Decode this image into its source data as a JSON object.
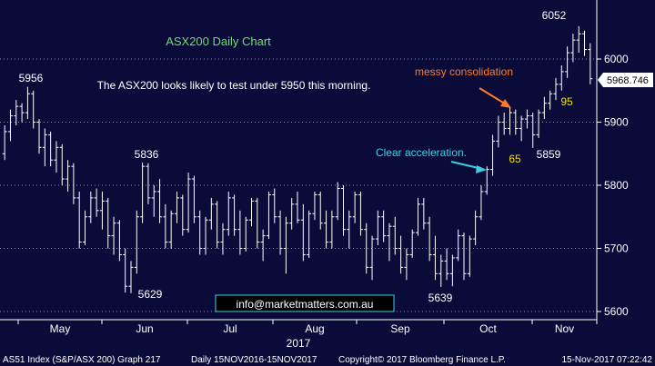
{
  "chart_data": {
    "type": "ohlc",
    "title": "ASX200 Daily Chart",
    "subtitle": "The ASX200 looks likely to test under 5950 this morning.",
    "ylim": [
      5590,
      6070
    ],
    "yticks": [
      5600,
      5700,
      5800,
      5900,
      6000
    ],
    "xaxis": {
      "months": [
        "May",
        "Jun",
        "Jul",
        "Aug",
        "Sep",
        "Oct",
        "Nov"
      ],
      "year": "2017"
    },
    "last_price": "5968.746",
    "series": [
      {
        "values": [
          [
            5850,
            5895,
            5840,
            5885
          ],
          [
            5885,
            5920,
            5870,
            5910
          ],
          [
            5910,
            5935,
            5895,
            5925
          ],
          [
            5925,
            5930,
            5900,
            5915
          ],
          [
            5915,
            5956,
            5905,
            5945
          ],
          [
            5945,
            5950,
            5890,
            5900
          ],
          [
            5900,
            5905,
            5850,
            5860
          ],
          [
            5860,
            5890,
            5830,
            5880
          ],
          [
            5880,
            5885,
            5830,
            5840
          ],
          [
            5840,
            5870,
            5820,
            5860
          ],
          [
            5860,
            5865,
            5800,
            5810
          ],
          [
            5810,
            5840,
            5790,
            5830
          ],
          [
            5830,
            5835,
            5770,
            5780
          ],
          [
            5780,
            5790,
            5700,
            5710
          ],
          [
            5710,
            5760,
            5705,
            5750
          ],
          [
            5750,
            5790,
            5740,
            5780
          ],
          [
            5780,
            5795,
            5750,
            5760
          ],
          [
            5760,
            5790,
            5730,
            5775
          ],
          [
            5775,
            5780,
            5700,
            5720
          ],
          [
            5720,
            5750,
            5690,
            5740
          ],
          [
            5740,
            5745,
            5680,
            5690
          ],
          [
            5690,
            5700,
            5630,
            5640
          ],
          [
            5640,
            5680,
            5629,
            5670
          ],
          [
            5670,
            5760,
            5660,
            5750
          ],
          [
            5750,
            5836,
            5740,
            5830
          ],
          [
            5830,
            5835,
            5770,
            5780
          ],
          [
            5780,
            5800,
            5750,
            5790
          ],
          [
            5790,
            5810,
            5740,
            5750
          ],
          [
            5750,
            5770,
            5700,
            5710
          ],
          [
            5710,
            5760,
            5700,
            5755
          ],
          [
            5755,
            5790,
            5740,
            5780
          ],
          [
            5780,
            5785,
            5720,
            5730
          ],
          [
            5730,
            5820,
            5725,
            5810
          ],
          [
            5810,
            5815,
            5740,
            5750
          ],
          [
            5750,
            5760,
            5690,
            5700
          ],
          [
            5700,
            5750,
            5690,
            5745
          ],
          [
            5745,
            5780,
            5730,
            5770
          ],
          [
            5770,
            5775,
            5700,
            5710
          ],
          [
            5710,
            5740,
            5690,
            5730
          ],
          [
            5730,
            5790,
            5720,
            5780
          ],
          [
            5780,
            5785,
            5720,
            5730
          ],
          [
            5730,
            5760,
            5690,
            5700
          ],
          [
            5700,
            5750,
            5695,
            5745
          ],
          [
            5745,
            5780,
            5735,
            5775
          ],
          [
            5775,
            5780,
            5700,
            5710
          ],
          [
            5710,
            5730,
            5680,
            5720
          ],
          [
            5720,
            5790,
            5715,
            5785
          ],
          [
            5785,
            5795,
            5740,
            5750
          ],
          [
            5750,
            5760,
            5690,
            5700
          ],
          [
            5700,
            5750,
            5660,
            5740
          ],
          [
            5740,
            5780,
            5730,
            5770
          ],
          [
            5770,
            5790,
            5740,
            5745
          ],
          [
            5745,
            5770,
            5680,
            5690
          ],
          [
            5690,
            5760,
            5685,
            5755
          ],
          [
            5755,
            5790,
            5745,
            5785
          ],
          [
            5785,
            5790,
            5730,
            5740
          ],
          [
            5740,
            5760,
            5700,
            5710
          ],
          [
            5710,
            5760,
            5700,
            5750
          ],
          [
            5750,
            5805,
            5745,
            5795
          ],
          [
            5795,
            5800,
            5720,
            5730
          ],
          [
            5730,
            5760,
            5700,
            5750
          ],
          [
            5750,
            5790,
            5740,
            5785
          ],
          [
            5785,
            5790,
            5720,
            5730
          ],
          [
            5730,
            5740,
            5660,
            5670
          ],
          [
            5670,
            5720,
            5650,
            5715
          ],
          [
            5715,
            5760,
            5705,
            5750
          ],
          [
            5750,
            5760,
            5710,
            5720
          ],
          [
            5720,
            5740,
            5680,
            5735
          ],
          [
            5735,
            5750,
            5690,
            5700
          ],
          [
            5700,
            5720,
            5660,
            5670
          ],
          [
            5670,
            5700,
            5650,
            5690
          ],
          [
            5690,
            5730,
            5685,
            5725
          ],
          [
            5725,
            5780,
            5720,
            5770
          ],
          [
            5770,
            5780,
            5730,
            5740
          ],
          [
            5740,
            5750,
            5680,
            5690
          ],
          [
            5690,
            5720,
            5650,
            5660
          ],
          [
            5660,
            5690,
            5639,
            5680
          ],
          [
            5680,
            5700,
            5650,
            5660
          ],
          [
            5660,
            5690,
            5640,
            5685
          ],
          [
            5685,
            5730,
            5680,
            5720
          ],
          [
            5720,
            5725,
            5650,
            5660
          ],
          [
            5660,
            5720,
            5655,
            5715
          ],
          [
            5715,
            5760,
            5705,
            5750
          ],
          [
            5750,
            5800,
            5745,
            5790
          ],
          [
            5790,
            5830,
            5785,
            5825
          ],
          [
            5825,
            5880,
            5815,
            5870
          ],
          [
            5870,
            5910,
            5860,
            5900
          ],
          [
            5900,
            5915,
            5880,
            5890
          ],
          [
            5890,
            5925,
            5880,
            5915
          ],
          [
            5915,
            5920,
            5880,
            5890
          ],
          [
            5890,
            5910,
            5870,
            5905
          ],
          [
            5905,
            5920,
            5890,
            5910
          ],
          [
            5910,
            5915,
            5859,
            5880
          ],
          [
            5880,
            5920,
            5875,
            5915
          ],
          [
            5915,
            5940,
            5905,
            5930
          ],
          [
            5930,
            5950,
            5920,
            5945
          ],
          [
            5945,
            5970,
            5935,
            5960
          ],
          [
            5960,
            5990,
            5950,
            5980
          ],
          [
            5980,
            6020,
            5970,
            6010
          ],
          [
            6010,
            6040,
            5995,
            6030
          ],
          [
            6030,
            6052,
            6010,
            6040
          ],
          [
            6040,
            6045,
            6005,
            6015
          ],
          [
            6015,
            6025,
            5960,
            5968.746
          ]
        ]
      }
    ]
  },
  "annotations": {
    "high_5956": "5956",
    "high_5836": "5836",
    "low_5629": "5629",
    "low_5639": "5639",
    "low_5859": "5859",
    "high_6052": "6052",
    "count_65": "65",
    "count_95": "95",
    "messy": "messy consolidation",
    "accel": "Clear acceleration.",
    "email": "info@marketmatters.com.au"
  },
  "footer": {
    "ticker": "AS51 Index (S&P/ASX 200) Graph 217",
    "period": "Daily 15NOV2016-15NOV2017",
    "copyright": "Copyright© 2017 Bloomberg Finance L.P.",
    "timestamp": "15-Nov-2017 07:22:42"
  },
  "colors": {
    "background": "#0b0b3a",
    "bars": "#ffffff",
    "title": "#6fdc6f",
    "orange": "#ff7a2a",
    "cyan": "#3fd0e0",
    "yellow": "#f5e100"
  }
}
